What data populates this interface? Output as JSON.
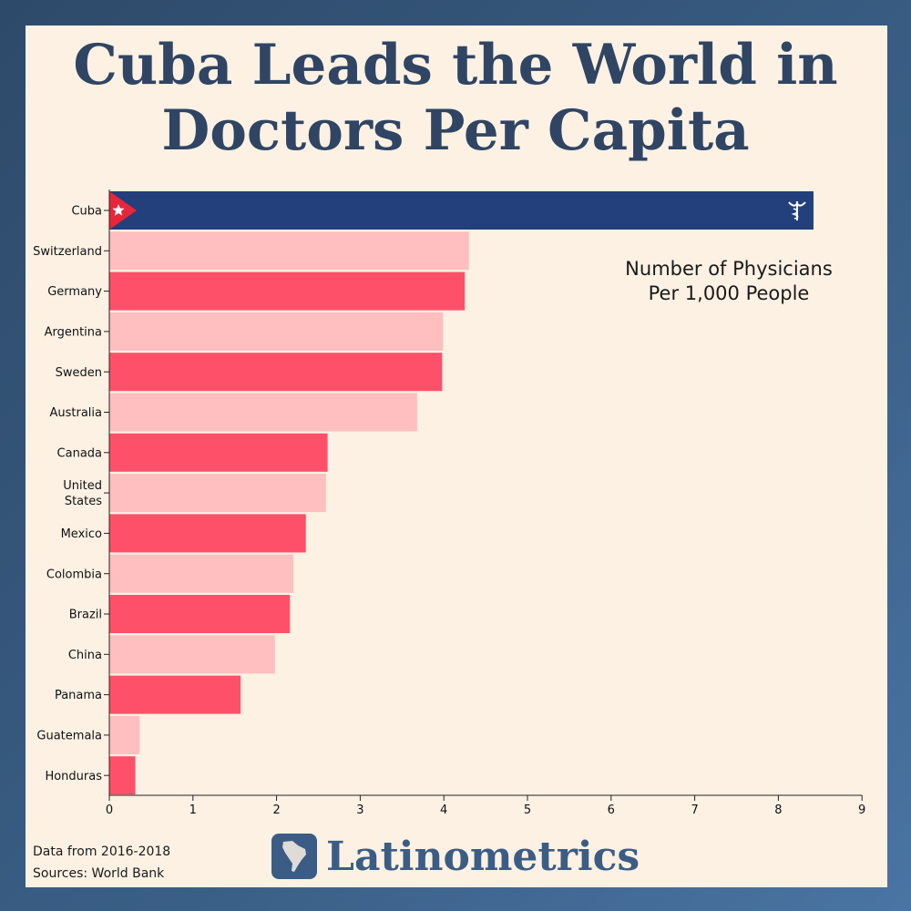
{
  "title_line1": "Cuba Leads the World in",
  "title_line2": "Doctors Per Capita",
  "legend_line1": "Number of Physicians",
  "legend_line2": "Per 1,000 People",
  "footnote_line1": "Data from 2016-2018",
  "footnote_line2": "Sources: World Bank",
  "brand": "Latinometrics",
  "colors": {
    "highlight": "#233f7c",
    "dark_bar": "#ff5069",
    "light_bar": "#ffbec0",
    "axis": "#222222",
    "flag_red": "#e8263a"
  },
  "chart_data": {
    "type": "bar",
    "orientation": "horizontal",
    "categories": [
      "Cuba",
      "Switzerland",
      "Germany",
      "Argentina",
      "Sweden",
      "Australia",
      "Canada",
      "United States",
      "Mexico",
      "Colombia",
      "Brazil",
      "China",
      "Panama",
      "Guatemala",
      "Honduras"
    ],
    "values": [
      8.42,
      4.3,
      4.25,
      3.99,
      3.98,
      3.68,
      2.61,
      2.59,
      2.35,
      2.2,
      2.16,
      1.98,
      1.57,
      0.36,
      0.31
    ],
    "xlim": [
      0,
      9
    ],
    "xticks": [
      0,
      1,
      2,
      3,
      4,
      5,
      6,
      7,
      8,
      9
    ],
    "xlabel": "",
    "ylabel": "",
    "grid": false
  }
}
